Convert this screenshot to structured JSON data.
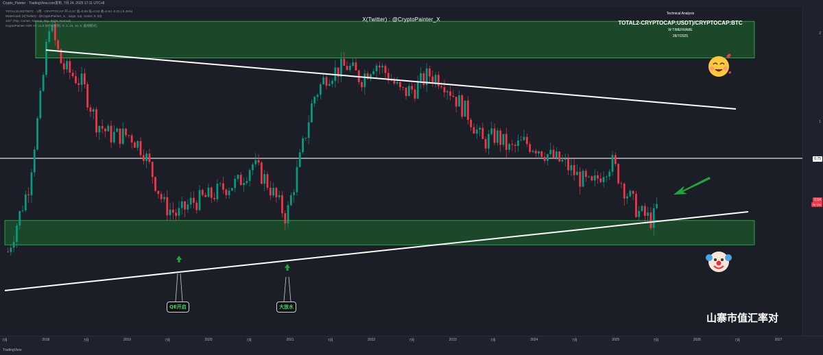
{
  "topbar": {
    "text": "Crypto_PainterㆍTradingView.com发布, 7月 24, 2025 17:11 UTC+8"
  },
  "legend": {
    "line1": "TOTAL2/USDT/BTC · 1周 · CRYPTOCAP  开=0.57  高=0.59  低=0.53  收=0.54  -0.03 (-5.49%)",
    "line2": "Watermark (X(Twitter) : @CryptoPainter_X, , large, top, center, 9, 50)",
    "line3": "100° (Top, Center, Normal, Top, Right, Normal)",
    "line4": "CryptoPainter ASR VC v1.5 (BTC(保持), 5, 2, 16, 10, 8, 画线模式)"
  },
  "watermark": "X(Twitter) : @CryptoPainter_X",
  "analysis": {
    "label": "Technical Analysis",
    "pair": "TOTAL2-CRYPTOCAP:USDT)/CRYPTOCAP:BTC",
    "timeframe": "W TIMEFRAME",
    "date": "28/7/2025"
  },
  "bottom_label": "山寨市值汇率对",
  "callouts": {
    "qe": "QE开启",
    "flood": "大放水"
  },
  "price_tags": {
    "horizontal_level": "0.75",
    "current_price": "0.54",
    "current_countdown": "3d 13h"
  },
  "colors": {
    "up": "#089981",
    "down": "#f23645",
    "zone_fill": "#1e6b2e",
    "zone_border": "#2ebd4e",
    "trendline": "#ffffff",
    "arrow": "#1fa839",
    "price_tag_bg": "#f23645"
  },
  "icons": {
    "top_zone": "smiling-face-icon",
    "bottom_zone": "clown-face-icon",
    "pointer": "green-arrow-icon"
  },
  "bottombar": {
    "logo": "TradingView"
  },
  "chart_data": {
    "type": "candlestick",
    "symbol": "TOTAL2 (USDT) / BTC",
    "timeframe": "1W",
    "y_scale": "log",
    "ylim": [
      0.3,
      3.0
    ],
    "y_ticks": [
      "2",
      "1",
      "0.75"
    ],
    "x_ticks": [
      "7月",
      "2018",
      "7月",
      "2019",
      "7月",
      "2020",
      "7月",
      "2021",
      "7月",
      "2022",
      "7月",
      "2023",
      "7月",
      "2024",
      "7月",
      "2025",
      "7月",
      "2026",
      "7月",
      "2027"
    ],
    "price_path": [
      {
        "date": "2017-07",
        "close": 0.36
      },
      {
        "date": "2017-10",
        "close": 0.6
      },
      {
        "date": "2017-12",
        "close": 1.3
      },
      {
        "date": "2018-01",
        "close": 2.2
      },
      {
        "date": "2018-03",
        "close": 1.55
      },
      {
        "date": "2018-06",
        "close": 1.35
      },
      {
        "date": "2018-08",
        "close": 1.0
      },
      {
        "date": "2018-10",
        "close": 0.9
      },
      {
        "date": "2019-01",
        "close": 0.9
      },
      {
        "date": "2019-03",
        "close": 0.8
      },
      {
        "date": "2019-06",
        "close": 0.52
      },
      {
        "date": "2019-08",
        "close": 0.48
      },
      {
        "date": "2019-10",
        "close": 0.53
      },
      {
        "date": "2020-01",
        "close": 0.56
      },
      {
        "date": "2020-03",
        "close": 0.6
      },
      {
        "date": "2020-05",
        "close": 0.62
      },
      {
        "date": "2020-07",
        "close": 0.72
      },
      {
        "date": "2020-09",
        "close": 0.63
      },
      {
        "date": "2020-11",
        "close": 0.52
      },
      {
        "date": "2020-12",
        "close": 0.47
      },
      {
        "date": "2021-02",
        "close": 0.75
      },
      {
        "date": "2021-04",
        "close": 1.2
      },
      {
        "date": "2021-06",
        "close": 1.45
      },
      {
        "date": "2021-09",
        "close": 1.55
      },
      {
        "date": "2021-11",
        "close": 1.4
      },
      {
        "date": "2022-01",
        "close": 1.6
      },
      {
        "date": "2022-03",
        "close": 1.45
      },
      {
        "date": "2022-05",
        "close": 1.25
      },
      {
        "date": "2022-07",
        "close": 1.3
      },
      {
        "date": "2022-09",
        "close": 1.45
      },
      {
        "date": "2022-11",
        "close": 1.4
      },
      {
        "date": "2023-01",
        "close": 1.2
      },
      {
        "date": "2023-03",
        "close": 1.05
      },
      {
        "date": "2023-05",
        "close": 0.85
      },
      {
        "date": "2023-07",
        "close": 0.9
      },
      {
        "date": "2023-09",
        "close": 0.8
      },
      {
        "date": "2023-11",
        "close": 0.85
      },
      {
        "date": "2024-01",
        "close": 0.82
      },
      {
        "date": "2024-03",
        "close": 0.76
      },
      {
        "date": "2024-05",
        "close": 0.72
      },
      {
        "date": "2024-07",
        "close": 0.65
      },
      {
        "date": "2024-09",
        "close": 0.6
      },
      {
        "date": "2024-11",
        "close": 0.7
      },
      {
        "date": "2024-12",
        "close": 0.73
      },
      {
        "date": "2025-02",
        "close": 0.58
      },
      {
        "date": "2025-04",
        "close": 0.49
      },
      {
        "date": "2025-06",
        "close": 0.46
      },
      {
        "date": "2025-07",
        "close": 0.54
      }
    ],
    "horizontal_line": 0.75,
    "zones": [
      {
        "name": "top-zone",
        "low": 1.65,
        "high": 2.2
      },
      {
        "name": "bottom-zone",
        "low": 0.38,
        "high": 0.46
      }
    ]
  }
}
